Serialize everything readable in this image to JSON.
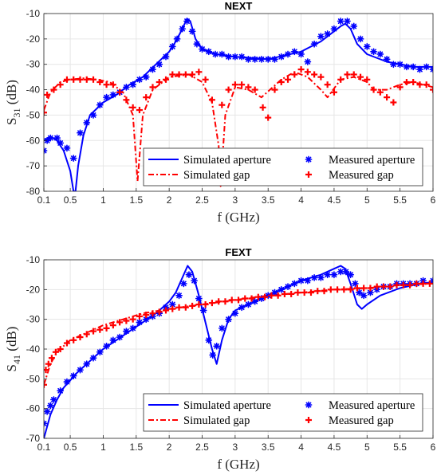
{
  "colors": {
    "blue": "#0000ff",
    "red": "#ff0000"
  },
  "chart_data": [
    {
      "type": "line",
      "title": "NEXT",
      "xlabel": "f (GHz)",
      "ylabel": "S",
      "ylabel_sub": "31",
      "ylabel_unit": " (dB)",
      "xlim": [
        0.1,
        6
      ],
      "ylim": [
        -80,
        -10
      ],
      "xticks": [
        0.1,
        0.5,
        1,
        1.5,
        2,
        2.5,
        3,
        3.5,
        4,
        4.5,
        5,
        5.5,
        6
      ],
      "xtick_labels": [
        "0.1",
        "0.5",
        "1",
        "1.5",
        "2",
        "2.5",
        "3",
        "3.5",
        "4",
        "4.5",
        "5",
        "5.5",
        "6"
      ],
      "yticks": [
        -80,
        -70,
        -60,
        -50,
        -40,
        -30,
        -20,
        -10
      ],
      "ytick_labels": [
        "-80",
        "-70",
        "-60",
        "-50",
        "-40",
        "-30",
        "-20",
        "-10"
      ],
      "grid": true,
      "legend_position": "bottom-right",
      "legend": [
        "Simulated aperture",
        "Simulated gap",
        "Measured aperture",
        "Measured gap"
      ],
      "series": [
        {
          "name": "Simulated aperture",
          "style": "solid",
          "color": "#0000ff",
          "x": [
            0.1,
            0.2,
            0.3,
            0.4,
            0.5,
            0.55,
            0.58,
            0.62,
            0.7,
            0.8,
            1.0,
            1.2,
            1.4,
            1.6,
            1.8,
            2.0,
            2.1,
            2.2,
            2.27,
            2.32,
            2.4,
            2.5,
            2.7,
            3.0,
            3.5,
            4.0,
            4.3,
            4.5,
            4.6,
            4.67,
            4.75,
            4.85,
            5.0,
            5.3,
            5.7,
            6.0
          ],
          "y": [
            -60,
            -58.5,
            -60,
            -64,
            -72,
            -80,
            -80,
            -70,
            -58,
            -50,
            -45,
            -42,
            -38,
            -35,
            -30,
            -25,
            -21,
            -16,
            -12,
            -13,
            -20,
            -24,
            -26,
            -27,
            -28,
            -25,
            -21,
            -17,
            -15,
            -14,
            -16,
            -22,
            -26,
            -29,
            -31,
            -31
          ]
        },
        {
          "name": "Simulated gap",
          "style": "dashed",
          "color": "#ff0000",
          "x": [
            0.1,
            0.2,
            0.35,
            0.5,
            0.7,
            0.9,
            1.1,
            1.3,
            1.45,
            1.52,
            1.6,
            1.75,
            2.0,
            2.3,
            2.5,
            2.65,
            2.75,
            2.78,
            2.85,
            3.0,
            3.2,
            3.4,
            3.7,
            3.9,
            4.1,
            4.3,
            4.4,
            4.6,
            4.8,
            5.0,
            5.1,
            5.3,
            5.5,
            5.7,
            6.0
          ],
          "y": [
            -48,
            -41,
            -37,
            -36,
            -35.5,
            -36,
            -37,
            -41,
            -50,
            -76,
            -50,
            -40,
            -35,
            -34,
            -37,
            -45,
            -62,
            -78,
            -50,
            -39,
            -40,
            -43,
            -36,
            -33,
            -35,
            -40,
            -43,
            -36,
            -35,
            -37,
            -40,
            -40,
            -38,
            -37,
            -39
          ]
        },
        {
          "name": "Measured aperture",
          "style": "marker-asterisk",
          "color": "#0000ff",
          "x": [
            0.1,
            0.15,
            0.2,
            0.3,
            0.35,
            0.45,
            0.55,
            0.65,
            0.75,
            0.85,
            0.95,
            1.05,
            1.15,
            1.25,
            1.35,
            1.45,
            1.55,
            1.65,
            1.75,
            1.85,
            1.95,
            2.05,
            2.12,
            2.2,
            2.27,
            2.35,
            2.42,
            2.5,
            2.6,
            2.7,
            2.8,
            2.9,
            3.0,
            3.1,
            3.2,
            3.3,
            3.4,
            3.5,
            3.6,
            3.7,
            3.8,
            3.9,
            4.0,
            4.1,
            4.2,
            4.3,
            4.4,
            4.5,
            4.6,
            4.7,
            4.8,
            4.9,
            5.0,
            5.1,
            5.2,
            5.3,
            5.4,
            5.5,
            5.6,
            5.7,
            5.8,
            5.9,
            6.0
          ],
          "y": [
            -64,
            -60,
            -59,
            -59,
            -61,
            -63,
            -67,
            -57,
            -53,
            -50,
            -46,
            -43,
            -42,
            -41,
            -39,
            -38,
            -36,
            -35,
            -32,
            -30,
            -27,
            -23,
            -20,
            -16,
            -13,
            -17,
            -22,
            -24,
            -25,
            -26,
            -26,
            -27,
            -27,
            -27,
            -28,
            -28,
            -28,
            -28,
            -28,
            -27,
            -26,
            -25,
            -26,
            -29,
            -22,
            -19,
            -18,
            -16,
            -13,
            -13,
            -15,
            -20,
            -23,
            -25,
            -26,
            -28,
            -30,
            -30,
            -31,
            -31,
            -32,
            -31,
            -32
          ]
        },
        {
          "name": "Measured gap",
          "style": "marker-plus",
          "color": "#ff0000",
          "x": [
            0.1,
            0.15,
            0.25,
            0.35,
            0.45,
            0.55,
            0.65,
            0.75,
            0.85,
            0.95,
            1.05,
            1.15,
            1.25,
            1.35,
            1.45,
            1.55,
            1.65,
            1.75,
            1.85,
            1.95,
            2.05,
            2.15,
            2.25,
            2.35,
            2.45,
            2.55,
            2.65,
            2.8,
            2.9,
            3.0,
            3.1,
            3.2,
            3.3,
            3.42,
            3.5,
            3.6,
            3.7,
            3.8,
            3.9,
            4.0,
            4.1,
            4.2,
            4.3,
            4.4,
            4.5,
            4.6,
            4.7,
            4.8,
            4.9,
            5.0,
            5.1,
            5.2,
            5.3,
            5.4,
            5.5,
            5.6,
            5.7,
            5.8,
            5.9,
            6.0
          ],
          "y": [
            -49,
            -42,
            -40,
            -38,
            -36,
            -36,
            -36,
            -36,
            -36,
            -37,
            -38,
            -38,
            -41,
            -44,
            -47,
            -48,
            -43,
            -39,
            -37,
            -36,
            -34,
            -34,
            -34,
            -34,
            -33,
            -36,
            -44,
            -46,
            -40,
            -38,
            -38,
            -39,
            -40,
            -47,
            -51,
            -40,
            -37,
            -36,
            -34,
            -32,
            -33,
            -34,
            -35,
            -38,
            -41,
            -36,
            -34,
            -34,
            -35,
            -36,
            -40,
            -41,
            -43,
            -45,
            -39,
            -37,
            -37,
            -38,
            -38,
            -40
          ]
        }
      ]
    },
    {
      "type": "line",
      "title": "FEXT",
      "xlabel": "f (GHz)",
      "ylabel": "S",
      "ylabel_sub": "41",
      "ylabel_unit": " (dB)",
      "xlim": [
        0.1,
        6
      ],
      "ylim": [
        -70,
        -10
      ],
      "xticks": [
        0.1,
        0.5,
        1,
        1.5,
        2,
        2.5,
        3,
        3.5,
        4,
        4.5,
        5,
        5.5,
        6
      ],
      "xtick_labels": [
        "0.1",
        "0.5",
        "1",
        "1.5",
        "2",
        "2.5",
        "3",
        "3.5",
        "4",
        "4.5",
        "5",
        "5.5",
        "6"
      ],
      "yticks": [
        -70,
        -60,
        -50,
        -40,
        -30,
        -20,
        -10
      ],
      "ytick_labels": [
        "-70",
        "-60",
        "-50",
        "-40",
        "-30",
        "-20",
        "-10"
      ],
      "grid": true,
      "legend_position": "bottom-right",
      "legend": [
        "Simulated aperture",
        "Simulated gap",
        "Measured aperture",
        "Measured gap"
      ],
      "series": [
        {
          "name": "Simulated aperture",
          "style": "solid",
          "color": "#0000ff",
          "x": [
            0.1,
            0.2,
            0.3,
            0.4,
            0.6,
            0.8,
            1.0,
            1.2,
            1.4,
            1.6,
            1.8,
            2.0,
            2.1,
            2.2,
            2.28,
            2.35,
            2.45,
            2.55,
            2.65,
            2.72,
            2.8,
            2.9,
            3.0,
            3.2,
            3.5,
            3.8,
            4.0,
            4.3,
            4.5,
            4.6,
            4.67,
            4.75,
            4.85,
            4.92,
            5.0,
            5.2,
            5.5,
            5.8,
            6.0
          ],
          "y": [
            -70,
            -62,
            -57,
            -53,
            -48,
            -44,
            -40,
            -37,
            -34,
            -31,
            -28,
            -24,
            -21,
            -16,
            -12,
            -14,
            -22,
            -31,
            -40,
            -45,
            -37,
            -30,
            -27,
            -25,
            -22,
            -19,
            -17,
            -15,
            -13,
            -12,
            -13,
            -18,
            -25,
            -26.5,
            -25,
            -22,
            -19.5,
            -18,
            -17.5
          ]
        },
        {
          "name": "Simulated gap",
          "style": "dashed",
          "color": "#ff0000",
          "x": [
            0.1,
            0.2,
            0.3,
            0.5,
            0.8,
            1.0,
            1.3,
            1.6,
            2.0,
            2.5,
            3.0,
            3.5,
            4.0,
            4.5,
            5.0,
            5.5,
            6.0
          ],
          "y": [
            -52,
            -45,
            -41,
            -37,
            -34,
            -32,
            -30,
            -28,
            -26.5,
            -25,
            -23.5,
            -22,
            -21,
            -20,
            -19.5,
            -18.5,
            -18
          ]
        },
        {
          "name": "Measured aperture",
          "style": "marker-asterisk",
          "color": "#0000ff",
          "x": [
            0.1,
            0.15,
            0.2,
            0.25,
            0.35,
            0.45,
            0.55,
            0.65,
            0.75,
            0.85,
            0.95,
            1.05,
            1.15,
            1.25,
            1.35,
            1.45,
            1.55,
            1.65,
            1.75,
            1.85,
            1.95,
            2.05,
            2.15,
            2.22,
            2.3,
            2.38,
            2.45,
            2.52,
            2.6,
            2.66,
            2.72,
            2.8,
            2.9,
            3.0,
            3.1,
            3.2,
            3.3,
            3.4,
            3.5,
            3.6,
            3.7,
            3.8,
            3.9,
            4.0,
            4.1,
            4.2,
            4.3,
            4.4,
            4.5,
            4.6,
            4.68,
            4.75,
            4.82,
            4.88,
            4.95,
            5.05,
            5.15,
            5.25,
            5.35,
            5.45,
            5.55,
            5.65,
            5.75,
            5.85,
            6.0
          ],
          "y": [
            -65,
            -61,
            -59,
            -57,
            -54,
            -51,
            -49,
            -47,
            -45,
            -43,
            -41,
            -39,
            -37,
            -36,
            -34,
            -33,
            -31,
            -30,
            -29,
            -28,
            -26,
            -25,
            -22,
            -18,
            -15,
            -17,
            -23,
            -27,
            -37,
            -42,
            -39,
            -33,
            -30,
            -28,
            -26,
            -25,
            -24,
            -23,
            -22,
            -21,
            -20,
            -19,
            -18,
            -17,
            -17,
            -16,
            -16,
            -15,
            -15,
            -14,
            -14,
            -15,
            -18,
            -21,
            -22,
            -21,
            -20,
            -19,
            -19,
            -18,
            -18,
            -18,
            -18,
            -17,
            -17
          ]
        },
        {
          "name": "Measured gap",
          "style": "marker-plus",
          "color": "#ff0000",
          "x": [
            0.1,
            0.13,
            0.17,
            0.22,
            0.28,
            0.35,
            0.45,
            0.55,
            0.65,
            0.75,
            0.85,
            0.95,
            1.05,
            1.15,
            1.25,
            1.35,
            1.45,
            1.55,
            1.65,
            1.75,
            1.85,
            1.95,
            2.05,
            2.15,
            2.25,
            2.35,
            2.45,
            2.55,
            2.65,
            2.75,
            2.85,
            2.95,
            3.05,
            3.15,
            3.25,
            3.35,
            3.45,
            3.55,
            3.65,
            3.75,
            3.85,
            3.95,
            4.05,
            4.15,
            4.25,
            4.35,
            4.45,
            4.55,
            4.65,
            4.75,
            4.85,
            4.95,
            5.05,
            5.15,
            5.25,
            5.35,
            5.45,
            5.55,
            5.65,
            5.75,
            5.85,
            5.95
          ],
          "y": [
            -52,
            -47,
            -45,
            -43,
            -41,
            -40,
            -38,
            -37,
            -36,
            -35,
            -34,
            -33.5,
            -33,
            -32,
            -31,
            -30.5,
            -30,
            -29,
            -28.5,
            -28,
            -27.5,
            -27,
            -26.5,
            -26,
            -26,
            -25.5,
            -25,
            -25,
            -24.5,
            -24,
            -24,
            -23.5,
            -23.5,
            -23,
            -23,
            -22.5,
            -22.5,
            -22,
            -22,
            -21.5,
            -21.5,
            -21,
            -21,
            -21,
            -20.5,
            -20.5,
            -20,
            -20,
            -20,
            -20,
            -19.5,
            -19.5,
            -19.5,
            -19,
            -19,
            -19,
            -18.5,
            -18.5,
            -18.5,
            -18,
            -18,
            -18
          ]
        }
      ]
    }
  ]
}
